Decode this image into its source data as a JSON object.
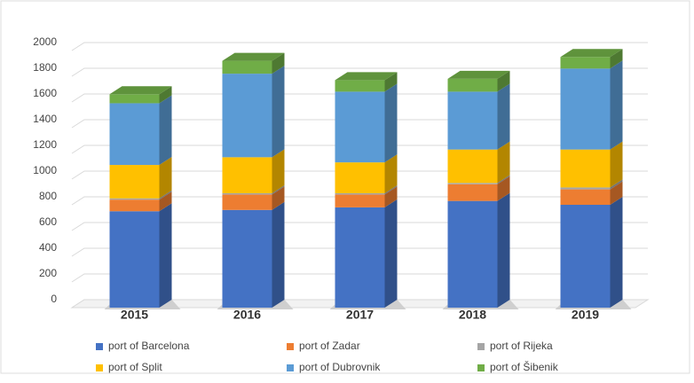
{
  "chart_data": {
    "type": "bar3d_stacked",
    "categories": [
      "2015",
      "2016",
      "2017",
      "2018",
      "2019"
    ],
    "series": [
      {
        "name": "port of Barcelona",
        "color": "#4472c4",
        "values": [
          750,
          760,
          780,
          830,
          800
        ]
      },
      {
        "name": "port of Zadar",
        "color": "#ed7d31",
        "values": [
          90,
          120,
          100,
          130,
          120
        ]
      },
      {
        "name": "port of Rijeka",
        "color": "#a5a5a5",
        "values": [
          10,
          10,
          10,
          10,
          15
        ]
      },
      {
        "name": "port of Split",
        "color": "#ffc000",
        "values": [
          260,
          280,
          240,
          260,
          295
        ]
      },
      {
        "name": "port of Dubrovnik",
        "color": "#5b9bd5",
        "values": [
          480,
          650,
          550,
          450,
          630
        ]
      },
      {
        "name": "port of Šibenik",
        "color": "#70ad47",
        "values": [
          70,
          100,
          90,
          100,
          90
        ]
      }
    ],
    "ylim": [
      0,
      2000
    ],
    "yticks": [
      0,
      200,
      400,
      600,
      800,
      1000,
      1200,
      1400,
      1600,
      1800,
      2000
    ],
    "grid": true
  }
}
